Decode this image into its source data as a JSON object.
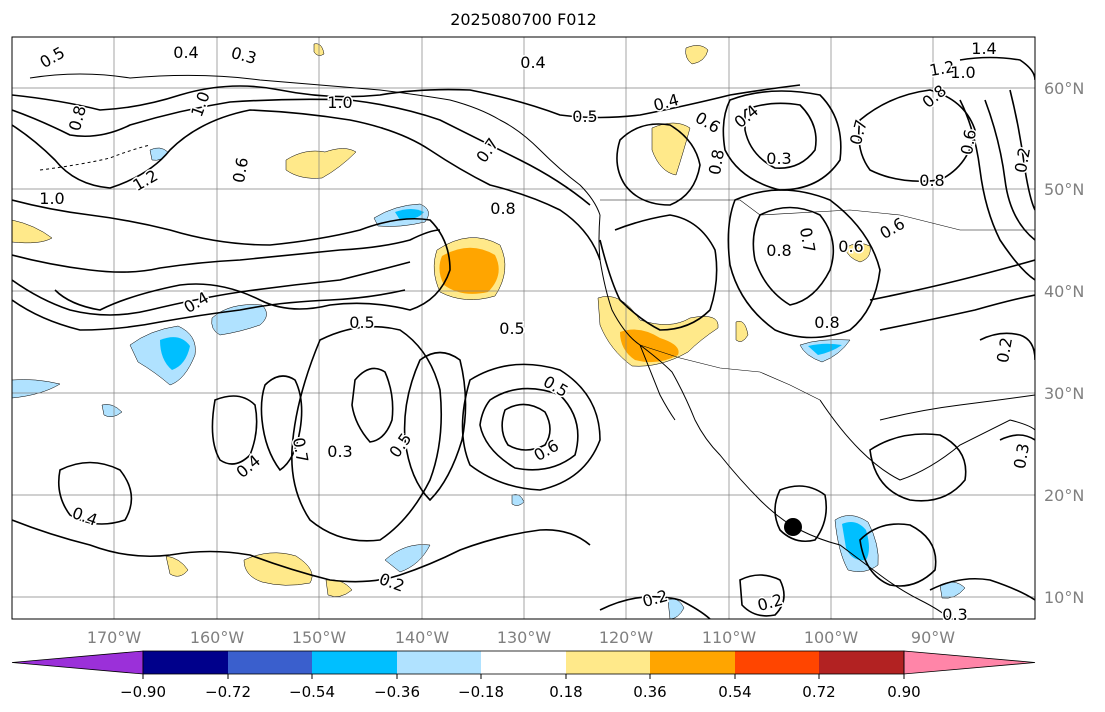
{
  "title": "2025080700 F012",
  "lon_labels": [
    "170°W",
    "160°W",
    "150°W",
    "140°W",
    "130°W",
    "120°W",
    "110°W",
    "100°W",
    "90°W"
  ],
  "lat_labels": [
    "60°N",
    "50°N",
    "40°N",
    "30°N",
    "20°N",
    "10°N"
  ],
  "colorbar": {
    "colors": [
      "#9b30d9",
      "#00008b",
      "#3a5fcd",
      "#00bfff",
      "#b0e2ff",
      "#ffffff",
      "#ffe98a",
      "#ffa500",
      "#ff4500",
      "#b22222",
      "#ff85a8"
    ],
    "tick_labels": [
      "−0.90",
      "−0.72",
      "−0.54",
      "−0.36",
      "−0.18",
      "0.18",
      "0.36",
      "0.54",
      "0.72",
      "0.90"
    ]
  },
  "contour_labels": [
    "0.5",
    "0.4",
    "0.3",
    "0.4",
    "0.5",
    "0.4",
    "1.4",
    "1.2",
    "1.0",
    "0.8",
    "1.0",
    "0.6",
    "1.0",
    "0.7",
    "0.6",
    "0.4",
    "0.8",
    "0.3",
    "0.8",
    "0.6",
    "0.8",
    "0.7",
    "0.2",
    "1.2",
    "1.0",
    "0.6",
    "0.8",
    "0.8",
    "0.7",
    "0.6",
    "0.4",
    "0.5",
    "0.5",
    "0.8",
    "0.5",
    "0.6",
    "0.7",
    "0.3",
    "0.5",
    "0.4",
    "0.4",
    "0.2",
    "0.2",
    "0.2",
    "0.2",
    "0.3",
    "0.3"
  ],
  "fill_colors": {
    "yellow": "#ffe98a",
    "orange": "#ffa500",
    "lightblue": "#b0e2ff",
    "blue": "#00bfff"
  }
}
